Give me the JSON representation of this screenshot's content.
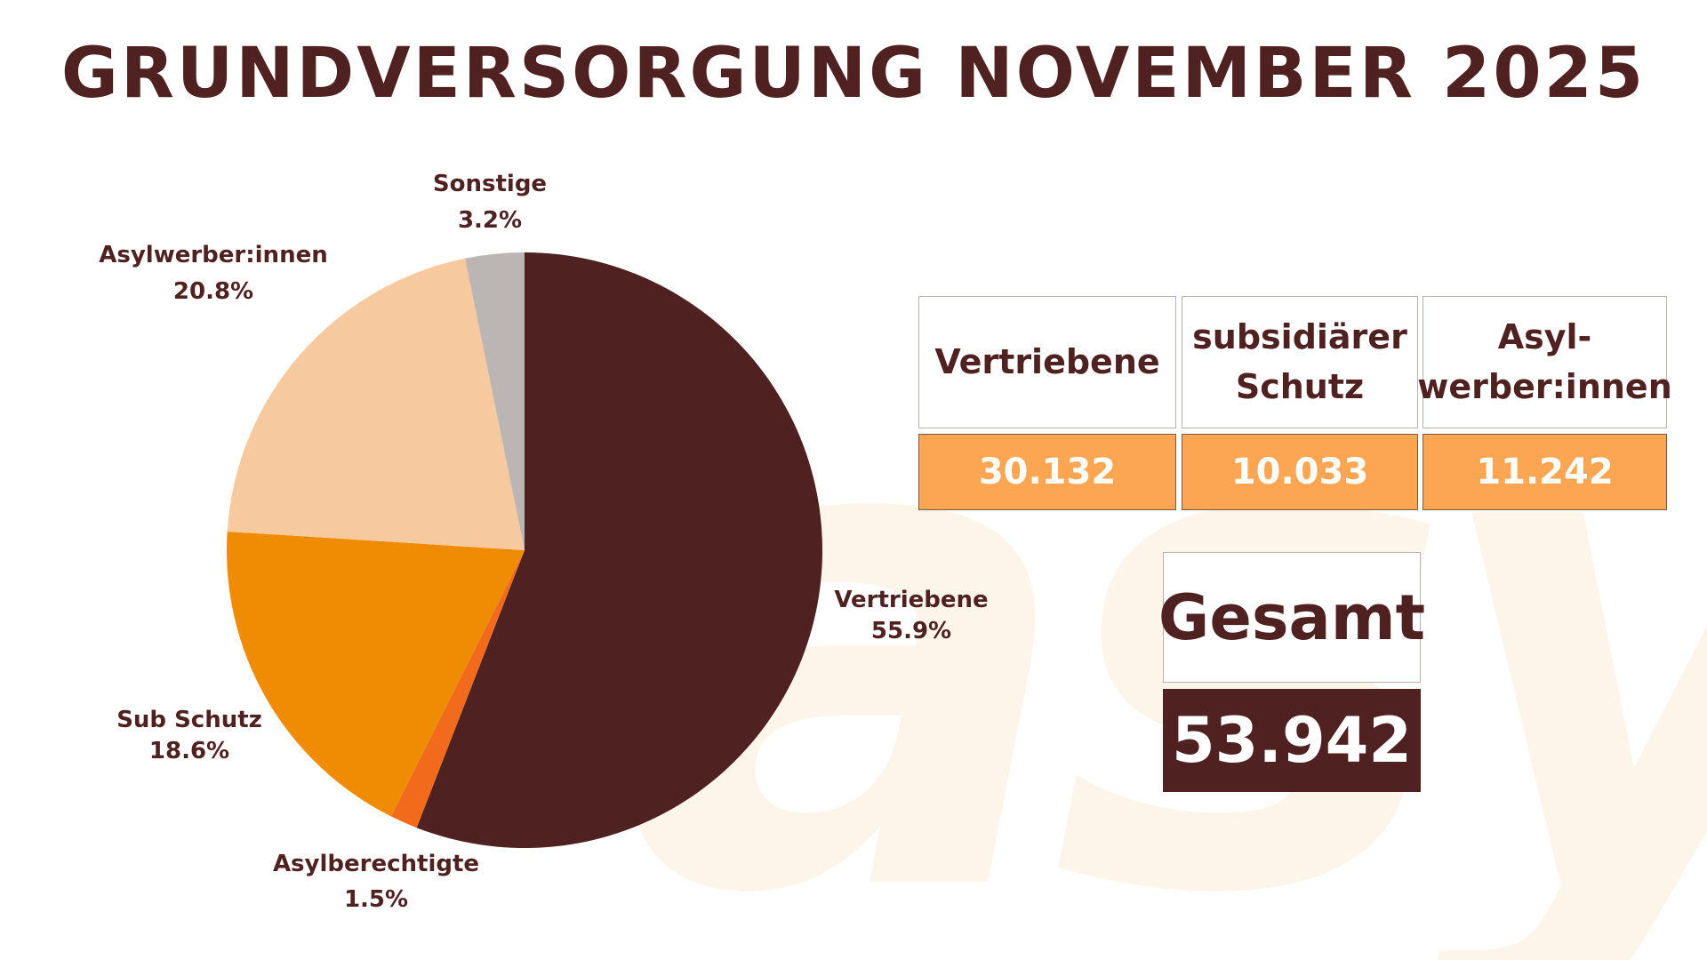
{
  "title": "GRUNDVERSORGUNG NOVEMBER 2025",
  "watermark": "asyl",
  "colors": {
    "dark_brown": "#4f2120",
    "orange": "#f08c04",
    "bright_orange": "#f26a1b",
    "peach": "#f6c99f",
    "gray": "#bbb5b3",
    "table_orange": "#fca654",
    "watermark": "#fdf5ea"
  },
  "chart_data": {
    "type": "pie",
    "slices": [
      {
        "name": "Vertriebene",
        "value": 55.9,
        "percent_label": "55.9%",
        "color": "#4f2120"
      },
      {
        "name": "Asylberechtigte",
        "value": 1.5,
        "percent_label": "1.5%",
        "color": "#f26a1b"
      },
      {
        "name": "Sub Schutz",
        "value": 18.6,
        "percent_label": "18.6%",
        "color": "#f08c04"
      },
      {
        "name": "Asylwerber:innen",
        "value": 20.8,
        "percent_label": "20.8%",
        "color": "#f6c99f"
      },
      {
        "name": "Sonstige",
        "value": 3.2,
        "percent_label": "3.2%",
        "color": "#bbb5b3"
      }
    ],
    "start_angle": "12 o'clock",
    "direction": "clockwise",
    "legend": "none"
  },
  "table": {
    "headers": [
      {
        "line1": "Vertriebene",
        "line2": ""
      },
      {
        "line1": "subsidiärer",
        "line2": "Schutz"
      },
      {
        "line1": "Asyl-",
        "line2": "werber:innen"
      }
    ],
    "values": [
      "30.132",
      "10.033",
      "11.242"
    ]
  },
  "total": {
    "label": "Gesamt",
    "value": "53.942"
  }
}
